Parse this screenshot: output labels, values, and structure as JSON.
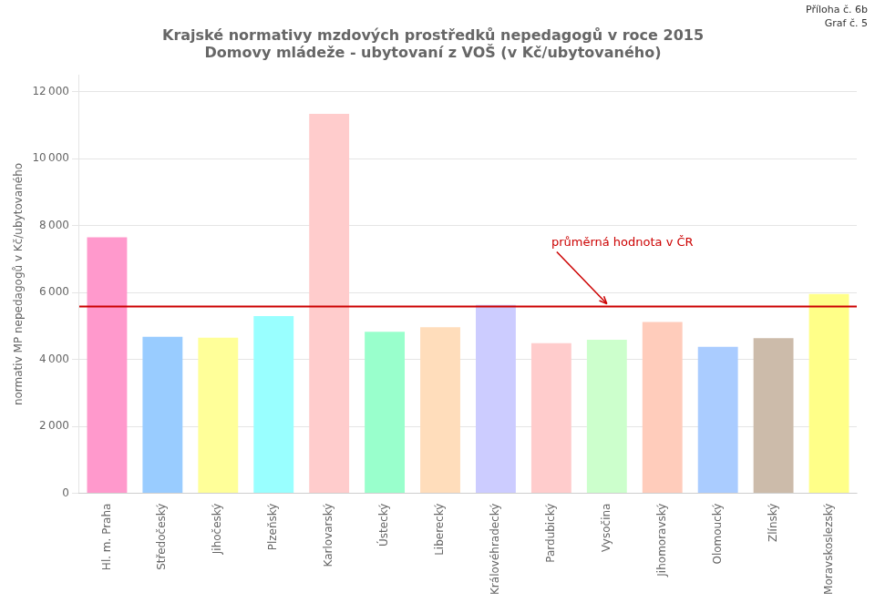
{
  "chart_data": {
    "type": "bar",
    "title": "Krajské normativy mzdových prostředků nepedagogů v roce 2015",
    "subtitle": "Domovy mládeže - ubytovaní z VOŠ (v Kč/ubytovaného)",
    "header": [
      "Příloha č. 6b",
      "Graf č. 5"
    ],
    "ylabel": "normativ MP nepedagogů v Kč/ubytovaného",
    "categories": [
      "Hl. m. Praha",
      "Středočeský",
      "Jihočeský",
      "Plzeňský",
      "Karlovarský",
      "Ústecký",
      "Liberecký",
      "Královéhradecký",
      "Pardubický",
      "Vysočina",
      "Jihomoravský",
      "Olomoucký",
      "Zlínský",
      "Moravskoslezský"
    ],
    "values": [
      7650,
      4680,
      4650,
      5300,
      11340,
      4830,
      4960,
      5630,
      4490,
      4590,
      5120,
      4380,
      4640,
      5960
    ],
    "colors": [
      "#FF99CC",
      "#99CCFF",
      "#FFFF99",
      "#99FFFF",
      "#FFCCCC",
      "#99FFCC",
      "#FFDDBB",
      "#CCCCFF",
      "#FFCCCC",
      "#CCFFCC",
      "#FFCCBB",
      "#AACCFF",
      "#CCBBAA",
      "#FFFF88"
    ],
    "annotations": [
      {
        "text": "průměrná hodnota v ČR",
        "y": 5580,
        "color": "#CC0000"
      }
    ],
    "ylim": [
      0,
      12500
    ],
    "yticks": [
      0,
      {
        "value": 2000,
        "label": "2 000"
      },
      {
        "value": 4000,
        "label": "4 000"
      },
      {
        "value": 6000,
        "label": "6 000"
      },
      {
        "value": 8000,
        "label": "8 000"
      },
      {
        "value": 10000,
        "label": "10 000"
      },
      {
        "value": 12000,
        "label": "12 000"
      }
    ],
    "grid": true
  }
}
